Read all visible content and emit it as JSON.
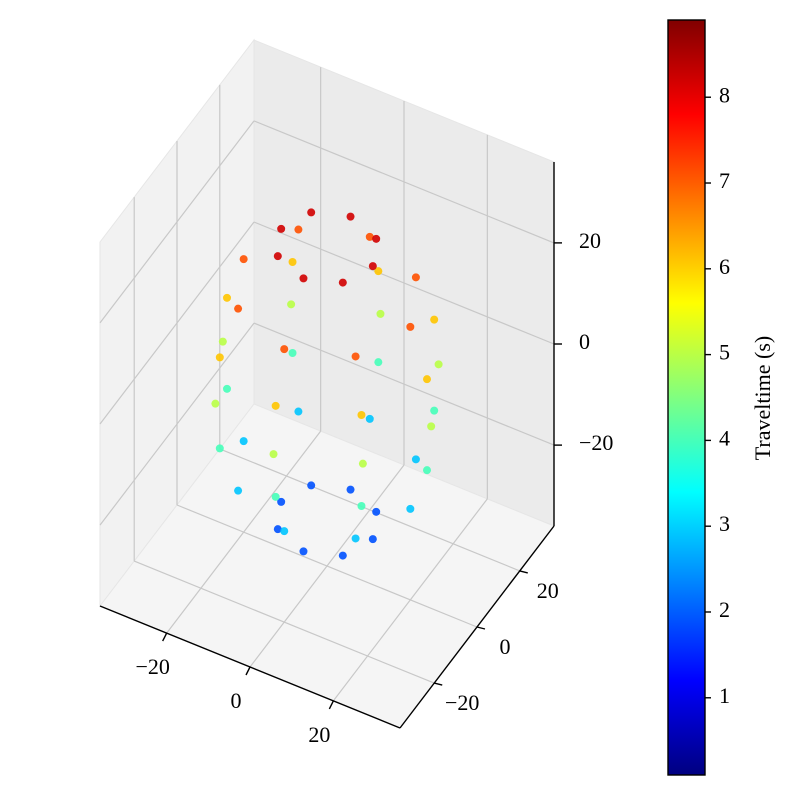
{
  "chart_data": {
    "type": "scatter3d",
    "colormap": "jet",
    "x": [
      11,
      7.8,
      0,
      -7.8,
      -11,
      -7.8,
      0,
      7.8,
      20,
      14.1,
      0,
      -14.1,
      -20,
      -14.1,
      0,
      14.1,
      24,
      17,
      0,
      -17,
      -24,
      -17,
      0,
      17,
      25,
      17.7,
      0,
      -17.7,
      -25,
      -17.7,
      0,
      17.7,
      24,
      17,
      0,
      -17,
      -24,
      -17,
      0,
      17,
      20,
      14.1,
      0,
      -14.1,
      -20,
      -14.1,
      0,
      14.1,
      11,
      7.8,
      0,
      -7.8,
      -11,
      -7.8,
      0,
      7.8
    ],
    "y": [
      0,
      7.8,
      11,
      7.8,
      0,
      -7.8,
      -11,
      -7.8,
      0,
      14.1,
      20,
      14.1,
      0,
      -14.1,
      -20,
      -14.1,
      0,
      17,
      24,
      17,
      0,
      -17,
      -24,
      -17,
      0,
      17.7,
      25,
      17.7,
      0,
      -17.7,
      -25,
      -17.7,
      0,
      17,
      24,
      17,
      0,
      -17,
      -24,
      -17,
      0,
      14.1,
      20,
      14.1,
      0,
      -14.1,
      -20,
      -14.1,
      0,
      7.8,
      11,
      7.8,
      0,
      -7.8,
      -11,
      -7.8
    ],
    "z": [
      -27,
      -27,
      -27,
      -27,
      -27,
      -27,
      -27,
      -27,
      -18,
      -18,
      -18,
      -18,
      -18,
      -18,
      -18,
      -18,
      -9,
      -9,
      -9,
      -9,
      -9,
      -9,
      -9,
      -9,
      0,
      0,
      0,
      0,
      0,
      0,
      0,
      0,
      9,
      9,
      9,
      9,
      9,
      9,
      9,
      9,
      18,
      18,
      18,
      18,
      18,
      18,
      18,
      18,
      27,
      27,
      27,
      27,
      27,
      27,
      27,
      27
    ],
    "values": [
      1.9,
      1.9,
      1.9,
      1.9,
      1.9,
      1.9,
      1.9,
      1.9,
      2.9,
      2.9,
      2.9,
      2.9,
      2.9,
      2.9,
      2.9,
      2.9,
      4.0,
      4.0,
      4.0,
      4.0,
      4.0,
      4.0,
      4.0,
      4.0,
      5.0,
      5.0,
      5.0,
      5.0,
      5.0,
      5.0,
      5.0,
      5.0,
      6.1,
      6.1,
      6.1,
      6.1,
      6.1,
      6.1,
      6.1,
      6.1,
      7.1,
      7.1,
      7.1,
      7.1,
      7.1,
      7.1,
      7.1,
      7.1,
      8.2,
      8.2,
      8.2,
      8.2,
      8.2,
      8.2,
      8.2,
      8.2
    ],
    "xlim": [
      -36,
      36
    ],
    "ylim": [
      -36,
      36
    ],
    "zlim": [
      -36,
      36
    ],
    "xticks": [
      {
        "value": -20,
        "label": "−20"
      },
      0,
      20
    ],
    "yticks": [
      {
        "value": -20,
        "label": "−20"
      },
      0,
      20
    ],
    "zticks": [
      {
        "value": -20,
        "label": "−20"
      },
      0,
      20
    ],
    "colorbar": {
      "label": "Traveltime (s)",
      "clim": [
        0.1,
        8.9
      ],
      "ticks": [
        1,
        2,
        3,
        4,
        5,
        6,
        7,
        8
      ]
    }
  }
}
